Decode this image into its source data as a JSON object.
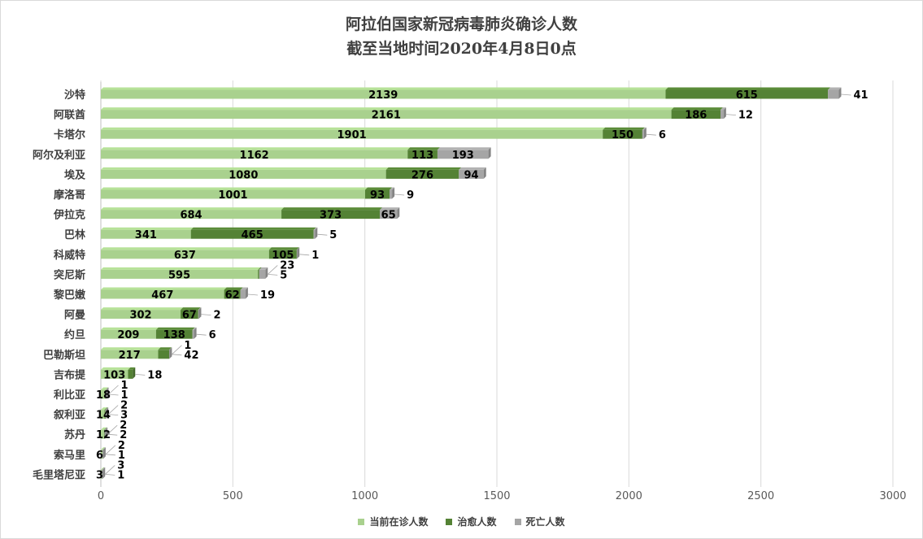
{
  "chart_data": {
    "type": "bar",
    "orientation": "horizontal",
    "stacked": true,
    "title": [
      "阿拉伯国家新冠病毒肺炎确诊人数",
      "截至当地时间2020年4月8日0点"
    ],
    "categories": [
      "沙特",
      "阿联酋",
      "卡塔尔",
      "阿尔及利亚",
      "埃及",
      "摩洛哥",
      "伊拉克",
      "巴林",
      "科威特",
      "突尼斯",
      "黎巴嫩",
      "阿曼",
      "约旦",
      "巴勒斯坦",
      "吉布提",
      "利比亚",
      "叙利亚",
      "苏丹",
      "索马里",
      "毛里塔尼亚"
    ],
    "series": [
      {
        "name": "当前在诊人数",
        "color": "#a9d18e",
        "values": [
          2139,
          2161,
          1901,
          1162,
          1080,
          1001,
          684,
          341,
          637,
          595,
          467,
          302,
          209,
          217,
          103,
          18,
          14,
          12,
          6,
          3
        ]
      },
      {
        "name": "治愈人数",
        "color": "#548235",
        "values": [
          615,
          186,
          150,
          113,
          276,
          93,
          373,
          465,
          105,
          5,
          62,
          67,
          138,
          42,
          18,
          1,
          3,
          2,
          1,
          1
        ]
      },
      {
        "name": "死亡人数",
        "color": "#a5a5a5",
        "values": [
          41,
          12,
          6,
          193,
          94,
          9,
          65,
          5,
          1,
          23,
          19,
          2,
          6,
          1,
          0,
          1,
          2,
          2,
          2,
          3
        ]
      }
    ],
    "xlim": [
      0,
      3000
    ],
    "xticks": [
      0,
      500,
      1000,
      1500,
      2000,
      2500,
      3000
    ],
    "grid": true,
    "legend_position": "bottom"
  }
}
